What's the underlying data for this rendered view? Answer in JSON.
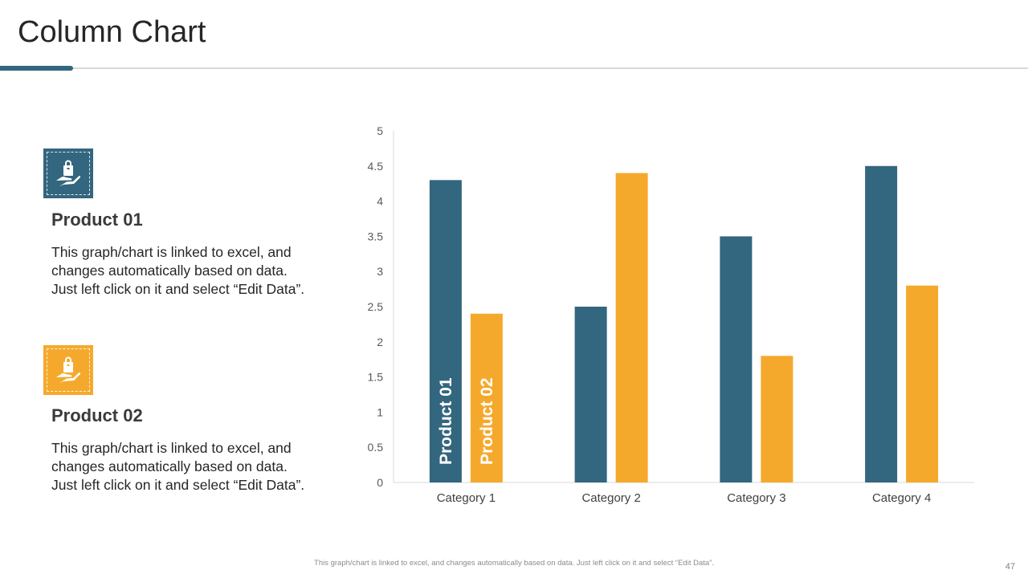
{
  "slide": {
    "title": "Column Chart",
    "page_number": "47",
    "footer_note": "This graph/chart is linked to excel, and changes automatically based on data. Just left click on it and select “Edit Data”."
  },
  "colors": {
    "product1": "#33667f",
    "product2": "#f5a92c"
  },
  "legend_items": [
    {
      "icon": "hand-holding-bag-icon",
      "title": "Product 01",
      "desc_lines": [
        "This graph/chart is linked to excel, and",
        "changes automatically based on data.",
        "Just left click on it and select “Edit Data”."
      ]
    },
    {
      "icon": "hand-holding-bag-icon",
      "title": "Product 02",
      "desc_lines": [
        "This graph/chart is linked to excel, and",
        "changes automatically based on data.",
        "Just left click on it and select “Edit Data”."
      ]
    }
  ],
  "chart_data": {
    "type": "bar",
    "title": "",
    "xlabel": "",
    "ylabel": "",
    "categories": [
      "Category 1",
      "Category 2",
      "Category 3",
      "Category 4"
    ],
    "series": [
      {
        "name": "Product 01",
        "values": [
          4.3,
          2.5,
          3.5,
          4.5
        ]
      },
      {
        "name": "Product 02",
        "values": [
          2.4,
          4.4,
          1.8,
          2.8
        ]
      }
    ],
    "ylim": [
      0,
      5
    ],
    "yticks": [
      "0",
      "0.5",
      "1",
      "1.5",
      "2",
      "2.5",
      "3",
      "3.5",
      "4",
      "4.5",
      "5"
    ],
    "grid": false,
    "series_labels_inside_first_category": true
  }
}
